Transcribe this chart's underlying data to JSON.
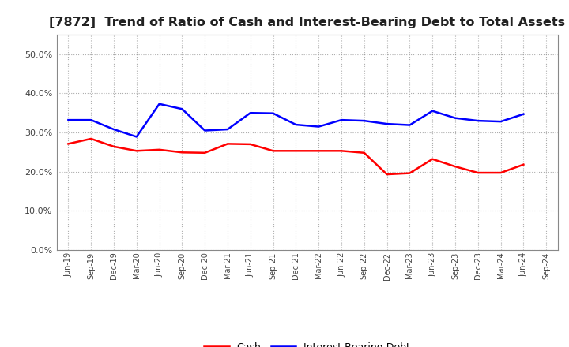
{
  "title": "[7872]  Trend of Ratio of Cash and Interest-Bearing Debt to Total Assets",
  "x_labels": [
    "Jun-19",
    "Sep-19",
    "Dec-19",
    "Mar-20",
    "Jun-20",
    "Sep-20",
    "Dec-20",
    "Mar-21",
    "Jun-21",
    "Sep-21",
    "Dec-21",
    "Mar-22",
    "Jun-22",
    "Sep-22",
    "Dec-22",
    "Mar-23",
    "Jun-23",
    "Sep-23",
    "Dec-23",
    "Mar-24",
    "Jun-24",
    "Sep-24"
  ],
  "cash": [
    0.271,
    0.284,
    0.264,
    0.253,
    0.256,
    0.249,
    0.248,
    0.271,
    0.27,
    0.253,
    0.253,
    0.253,
    0.253,
    0.248,
    0.193,
    0.196,
    0.232,
    0.213,
    0.197,
    0.197,
    0.218,
    null
  ],
  "ibd": [
    0.332,
    0.332,
    0.308,
    0.289,
    0.373,
    0.36,
    0.305,
    0.308,
    0.35,
    0.349,
    0.32,
    0.315,
    0.332,
    0.33,
    0.322,
    0.319,
    0.355,
    0.337,
    0.33,
    0.328,
    0.347,
    null
  ],
  "cash_color": "#ff0000",
  "ibd_color": "#0000ff",
  "ylim": [
    0.0,
    0.55
  ],
  "yticks": [
    0.0,
    0.1,
    0.2,
    0.3,
    0.4,
    0.5
  ],
  "background_color": "#ffffff",
  "grid_color": "#999999",
  "title_fontsize": 11.5,
  "legend_labels": [
    "Cash",
    "Interest-Bearing Debt"
  ],
  "legend_fontsize": 9
}
